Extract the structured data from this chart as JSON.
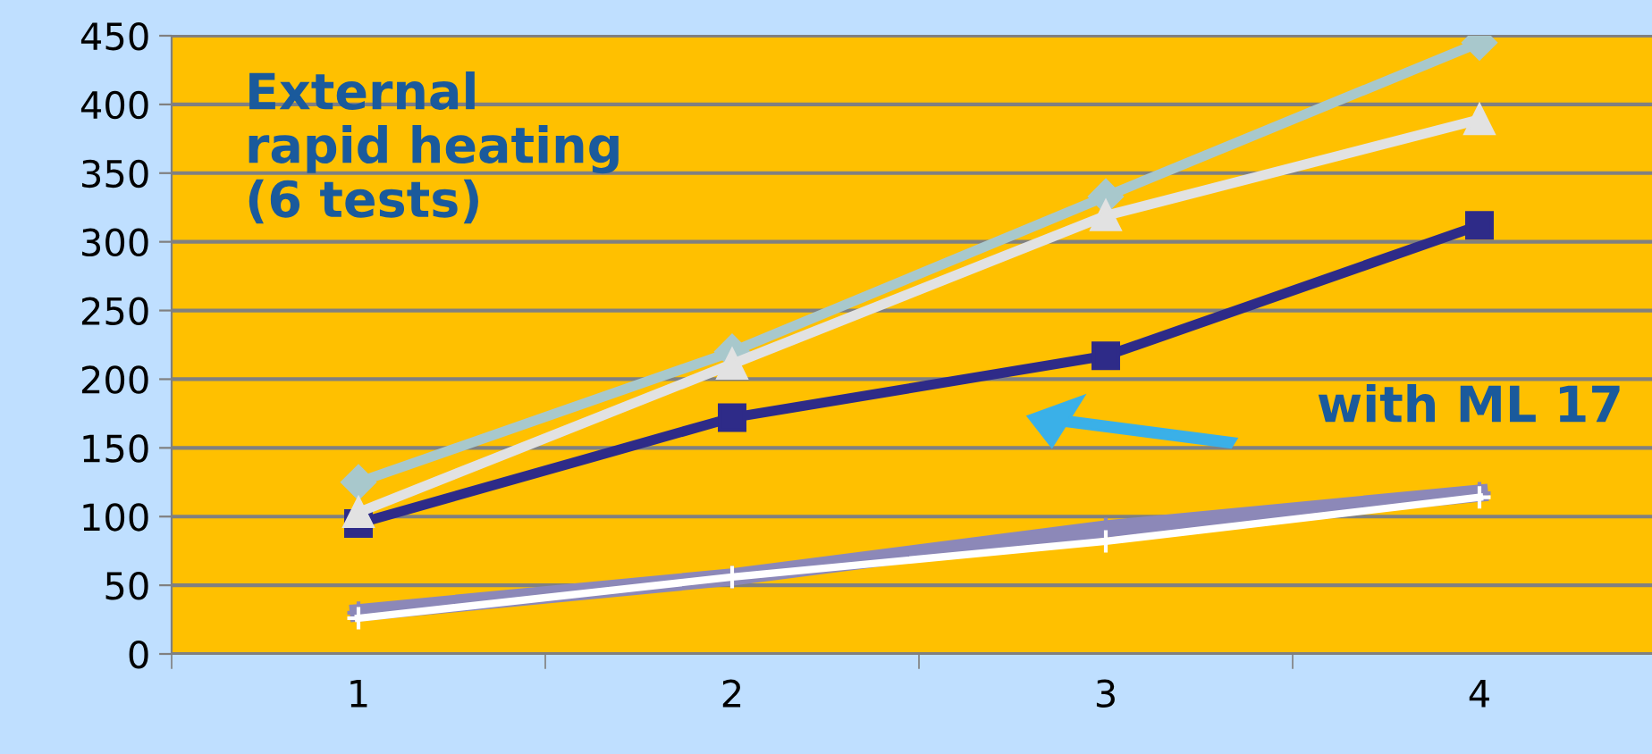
{
  "chart_data": {
    "type": "line",
    "categories": [
      "1",
      "2",
      "3",
      "4"
    ],
    "series": [
      {
        "color": "#a8c8cc",
        "marker": "diamond",
        "values": [
          125,
          220,
          333,
          445
        ]
      },
      {
        "color": "#e2e2e2",
        "marker": "triangle",
        "values": [
          103,
          211,
          319,
          389
        ]
      },
      {
        "color": "#2e2b88",
        "marker": "square",
        "values": [
          95,
          172,
          217,
          312
        ]
      },
      {
        "color": "#8c88b8",
        "marker": "cross",
        "values": [
          30,
          56,
          91,
          117
        ]
      },
      {
        "color": "#ffffff",
        "marker": "cross",
        "values": [
          26,
          56,
          82,
          114
        ]
      }
    ],
    "ylim": [
      0,
      450
    ],
    "yticks": [
      0,
      50,
      100,
      150,
      200,
      250,
      300,
      350,
      400,
      450
    ],
    "grid": "y",
    "legend": false,
    "annotations": [
      "External\nrapid heating\n(6 tests)",
      "with ML 17"
    ]
  }
}
